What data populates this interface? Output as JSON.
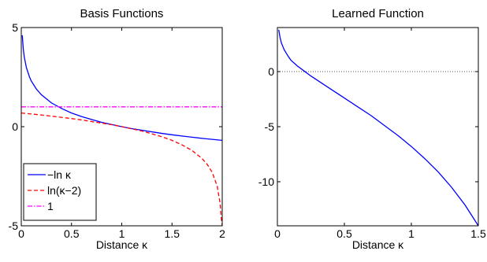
{
  "chart_data": [
    {
      "type": "line",
      "title": "Basis Functions",
      "xlabel": "Distance κ",
      "ylabel": "",
      "xlim": [
        0,
        2
      ],
      "ylim": [
        -5,
        5
      ],
      "xticks": [
        "0",
        "0.5",
        "1",
        "1.5",
        "2"
      ],
      "yticks": [
        "-5",
        "0",
        "5"
      ],
      "legend": "bottom-left",
      "series": [
        {
          "name": "−ln κ",
          "color": "#0000ff",
          "dash": "solid",
          "x": [
            0.01,
            0.02,
            0.03,
            0.05,
            0.08,
            0.1,
            0.15,
            0.2,
            0.3,
            0.4,
            0.5,
            0.6,
            0.7,
            0.8,
            0.9,
            1.0,
            1.1,
            1.2,
            1.3,
            1.4,
            1.5,
            1.6,
            1.7,
            1.8,
            1.9,
            2.0
          ],
          "y": [
            4.61,
            3.91,
            3.51,
            3.0,
            2.53,
            2.3,
            1.9,
            1.61,
            1.2,
            0.92,
            0.69,
            0.51,
            0.36,
            0.22,
            0.11,
            0.0,
            -0.1,
            -0.18,
            -0.26,
            -0.34,
            -0.41,
            -0.47,
            -0.53,
            -0.59,
            -0.64,
            -0.69
          ]
        },
        {
          "name": "ln(κ−2)",
          "color": "#ff0000",
          "dash": "dashed",
          "x": [
            0.0,
            0.1,
            0.2,
            0.3,
            0.4,
            0.5,
            0.6,
            0.7,
            0.8,
            0.9,
            1.0,
            1.1,
            1.2,
            1.3,
            1.4,
            1.5,
            1.6,
            1.7,
            1.8,
            1.85,
            1.9,
            1.95,
            1.98,
            1.99,
            2.0
          ],
          "y": [
            0.69,
            0.64,
            0.59,
            0.53,
            0.47,
            0.41,
            0.34,
            0.26,
            0.18,
            0.1,
            0.0,
            -0.11,
            -0.22,
            -0.36,
            -0.51,
            -0.69,
            -0.92,
            -1.2,
            -1.61,
            -1.9,
            -2.3,
            -3.0,
            -3.9,
            -4.6,
            -5.0
          ]
        },
        {
          "name": "1",
          "color": "#ff00ff",
          "dash": "dashdot",
          "x": [
            0,
            2
          ],
          "y": [
            1,
            1
          ]
        }
      ]
    },
    {
      "type": "line",
      "title": "Learned Function",
      "xlabel": "Distance κ",
      "ylabel": "",
      "xlim": [
        0,
        1.5
      ],
      "ylim": [
        -14,
        4
      ],
      "xticks": [
        "0",
        "0.5",
        "1",
        "1.5"
      ],
      "yticks": [
        "-10",
        "-5",
        "0"
      ],
      "reference_line": {
        "y": 0,
        "style": "dotted"
      },
      "series": [
        {
          "name": "",
          "color": "#0000ff",
          "dash": "solid",
          "x": [
            0.01,
            0.02,
            0.03,
            0.05,
            0.08,
            0.1,
            0.15,
            0.2,
            0.25,
            0.3,
            0.4,
            0.5,
            0.6,
            0.7,
            0.8,
            0.9,
            1.0,
            1.1,
            1.2,
            1.3,
            1.4,
            1.5
          ],
          "y": [
            3.8,
            3.1,
            2.6,
            2.0,
            1.4,
            1.05,
            0.5,
            0.05,
            -0.4,
            -0.8,
            -1.6,
            -2.4,
            -3.2,
            -4.0,
            -4.9,
            -5.8,
            -6.8,
            -7.9,
            -9.1,
            -10.5,
            -12.1,
            -14.0
          ]
        }
      ]
    }
  ]
}
